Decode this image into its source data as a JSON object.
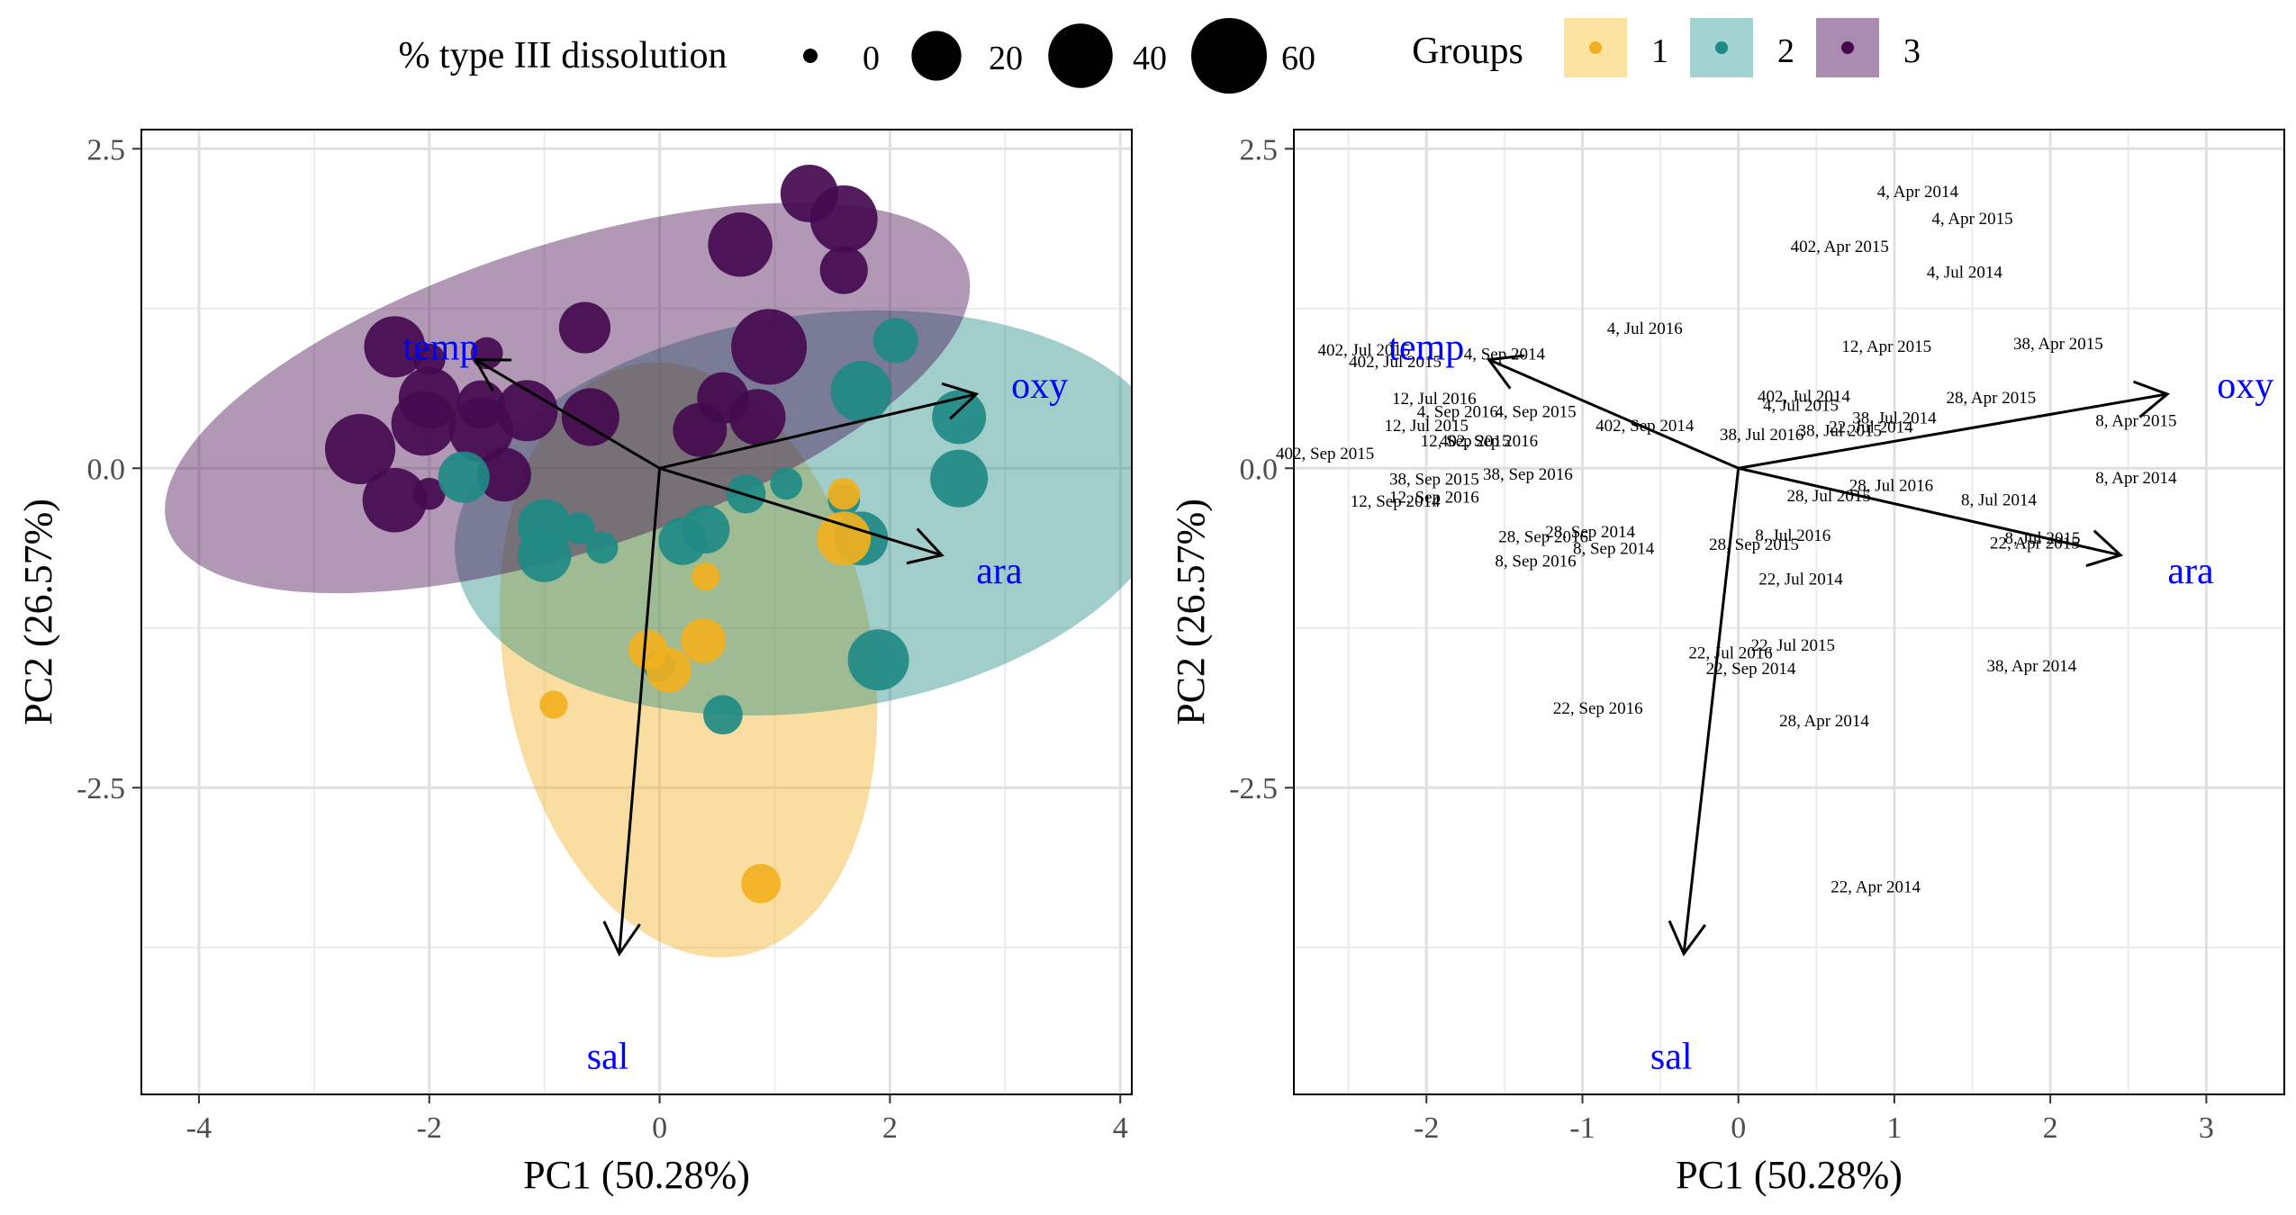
{
  "legend": {
    "size_title": "% type III dissolution",
    "size_items": [
      {
        "label": "0",
        "value": 0
      },
      {
        "label": "20",
        "value": 20
      },
      {
        "label": "40",
        "value": 40
      },
      {
        "label": "60",
        "value": 60
      }
    ],
    "group_title": "Groups",
    "group_items": [
      {
        "label": "1",
        "color": "#F2B01E",
        "fill": "#FDE3A2"
      },
      {
        "label": "2",
        "color": "#1F8A84",
        "fill": "#A3D3D1"
      },
      {
        "label": "3",
        "color": "#440A4F",
        "fill": "#A98CAF"
      }
    ]
  },
  "chart_data": [
    {
      "type": "scatter",
      "xlabel": "PC1 (50.28%)",
      "ylabel": "PC2 (26.57%)",
      "xlim": [
        -4.5,
        4.1
      ],
      "ylim": [
        -4.9,
        2.65
      ],
      "xticks": [
        -4,
        -2,
        0,
        2,
        4
      ],
      "yticks": [
        2.5,
        0.0,
        -2.5
      ],
      "xtick_labels": [
        "-4",
        "-2",
        "0",
        "2",
        "4"
      ],
      "ytick_labels": [
        "2.5",
        "0.0",
        "-2.5"
      ],
      "grid": true,
      "legend_position": "top",
      "size_variable": "% type III dissolution",
      "color_variable": "Groups",
      "ellipses": [
        {
          "group": "1",
          "cx": 0.25,
          "cy": -1.5,
          "rx": 1.6,
          "ry": 2.35,
          "angle": 10
        },
        {
          "group": "2",
          "cx": 1.35,
          "cy": -0.35,
          "rx": 3.15,
          "ry": 1.55,
          "angle": 8
        },
        {
          "group": "3",
          "cx": -0.8,
          "cy": 0.55,
          "rx": 3.65,
          "ry": 1.2,
          "angle": 18
        }
      ],
      "vectors": [
        {
          "label": "temp",
          "x": -1.6,
          "y": 0.85,
          "label_x": -1.9,
          "label_y": 0.95
        },
        {
          "label": "oxy",
          "x": 2.75,
          "y": 0.58,
          "label_x": 3.3,
          "label_y": 0.65
        },
        {
          "label": "ara",
          "x": 2.45,
          "y": -0.68,
          "label_x": 2.95,
          "label_y": -0.8
        },
        {
          "label": "sal",
          "x": -0.35,
          "y": -3.8,
          "label_x": -0.45,
          "label_y": -4.6
        }
      ],
      "points": [
        {
          "x": 1.3,
          "y": 2.15,
          "group": 3,
          "dissolution": 30
        },
        {
          "x": 1.6,
          "y": 1.95,
          "group": 3,
          "dissolution": 45
        },
        {
          "x": 0.7,
          "y": 1.75,
          "group": 3,
          "dissolution": 40
        },
        {
          "x": 1.6,
          "y": 1.55,
          "group": 3,
          "dissolution": 18
        },
        {
          "x": -0.65,
          "y": 1.1,
          "group": 3,
          "dissolution": 22
        },
        {
          "x": -2.3,
          "y": 0.95,
          "group": 3,
          "dissolution": 35
        },
        {
          "x": -1.5,
          "y": 0.9,
          "group": 3,
          "dissolution": 5
        },
        {
          "x": -2.0,
          "y": 0.85,
          "group": 3,
          "dissolution": 5
        },
        {
          "x": 0.95,
          "y": 0.95,
          "group": 3,
          "dissolution": 60
        },
        {
          "x": -2.0,
          "y": 0.55,
          "group": 3,
          "dissolution": 35
        },
        {
          "x": -1.55,
          "y": 0.5,
          "group": 3,
          "dissolution": 18
        },
        {
          "x": -1.15,
          "y": 0.45,
          "group": 3,
          "dissolution": 35
        },
        {
          "x": -2.05,
          "y": 0.35,
          "group": 3,
          "dissolution": 40
        },
        {
          "x": -1.55,
          "y": 0.3,
          "group": 3,
          "dissolution": 40
        },
        {
          "x": -0.6,
          "y": 0.4,
          "group": 3,
          "dissolution": 30
        },
        {
          "x": 0.55,
          "y": 0.55,
          "group": 3,
          "dissolution": 22
        },
        {
          "x": 0.85,
          "y": 0.4,
          "group": 3,
          "dissolution": 28
        },
        {
          "x": -2.6,
          "y": 0.15,
          "group": 3,
          "dissolution": 50
        },
        {
          "x": -2.3,
          "y": -0.25,
          "group": 3,
          "dissolution": 40
        },
        {
          "x": -2.0,
          "y": -0.2,
          "group": 3,
          "dissolution": 5
        },
        {
          "x": -1.35,
          "y": -0.05,
          "group": 3,
          "dissolution": 25
        },
        {
          "x": 0.35,
          "y": 0.3,
          "group": 3,
          "dissolution": 25
        },
        {
          "x": 2.05,
          "y": 1.0,
          "group": 2,
          "dissolution": 15
        },
        {
          "x": 1.75,
          "y": 0.6,
          "group": 2,
          "dissolution": 35
        },
        {
          "x": 2.6,
          "y": 0.4,
          "group": 2,
          "dissolution": 25
        },
        {
          "x": 2.6,
          "y": -0.08,
          "group": 2,
          "dissolution": 30
        },
        {
          "x": -1.7,
          "y": -0.07,
          "group": 2,
          "dissolution": 22
        },
        {
          "x": 0.75,
          "y": -0.2,
          "group": 2,
          "dissolution": 10
        },
        {
          "x": 1.1,
          "y": -0.12,
          "group": 2,
          "dissolution": 5
        },
        {
          "x": 1.6,
          "y": -0.25,
          "group": 2,
          "dissolution": 5
        },
        {
          "x": -1.0,
          "y": -0.45,
          "group": 2,
          "dissolution": 25
        },
        {
          "x": -0.7,
          "y": -0.47,
          "group": 2,
          "dissolution": 5
        },
        {
          "x": 0.4,
          "y": -0.48,
          "group": 2,
          "dissolution": 18
        },
        {
          "x": 0.2,
          "y": -0.57,
          "group": 2,
          "dissolution": 18
        },
        {
          "x": -0.5,
          "y": -0.62,
          "group": 2,
          "dissolution": 5
        },
        {
          "x": -1.0,
          "y": -0.68,
          "group": 2,
          "dissolution": 25
        },
        {
          "x": 1.75,
          "y": -0.55,
          "group": 2,
          "dissolution": 25
        },
        {
          "x": 1.9,
          "y": -1.5,
          "group": 2,
          "dissolution": 35
        },
        {
          "x": 0.55,
          "y": -1.93,
          "group": 2,
          "dissolution": 10
        },
        {
          "x": 0.0,
          "y": -1.55,
          "group": 2,
          "dissolution": 5
        },
        {
          "x": 1.6,
          "y": -0.55,
          "group": 1,
          "dissolution": 25
        },
        {
          "x": 1.6,
          "y": -0.2,
          "group": 1,
          "dissolution": 5
        },
        {
          "x": 0.4,
          "y": -0.85,
          "group": 1,
          "dissolution": 3
        },
        {
          "x": 0.38,
          "y": -1.35,
          "group": 1,
          "dissolution": 15
        },
        {
          "x": -0.1,
          "y": -1.42,
          "group": 1,
          "dissolution": 10
        },
        {
          "x": 0.08,
          "y": -1.58,
          "group": 1,
          "dissolution": 15
        },
        {
          "x": -0.92,
          "y": -1.85,
          "group": 1,
          "dissolution": 3
        },
        {
          "x": 0.88,
          "y": -3.25,
          "group": 1,
          "dissolution": 10
        }
      ]
    },
    {
      "type": "scatter",
      "xlabel": "PC1 (50.28%)",
      "ylabel": "PC2 (26.57%)",
      "xlim": [
        -2.85,
        3.5
      ],
      "ylim": [
        -4.9,
        2.65
      ],
      "xticks": [
        -2,
        -1,
        0,
        1,
        2,
        3
      ],
      "yticks": [
        2.5,
        0.0,
        -2.5
      ],
      "xtick_labels": [
        "-2",
        "-1",
        "0",
        "1",
        "2",
        "3"
      ],
      "ytick_labels": [
        "2.5",
        "0.0",
        "-2.5"
      ],
      "grid": true,
      "vectors": [
        {
          "label": "temp",
          "x": -1.6,
          "y": 0.85,
          "label_x": -2.0,
          "label_y": 0.95
        },
        {
          "label": "oxy",
          "x": 2.75,
          "y": 0.58,
          "label_x": 3.25,
          "label_y": 0.65
        },
        {
          "label": "ara",
          "x": 2.45,
          "y": -0.68,
          "label_x": 2.9,
          "label_y": -0.8
        },
        {
          "label": "sal",
          "x": -0.35,
          "y": -3.8,
          "label_x": -0.43,
          "label_y": -4.6
        }
      ],
      "sample_labels": [
        {
          "text": "4, Apr 2014",
          "x": 1.15,
          "y": 2.17
        },
        {
          "text": "4, Apr 2015",
          "x": 1.5,
          "y": 1.96
        },
        {
          "text": "402, Apr 2015",
          "x": 0.65,
          "y": 1.74
        },
        {
          "text": "4, Jul 2014",
          "x": 1.45,
          "y": 1.54
        },
        {
          "text": "4, Jul 2016",
          "x": -0.6,
          "y": 1.1
        },
        {
          "text": "12, Apr 2015",
          "x": 0.95,
          "y": 0.96
        },
        {
          "text": "38, Apr 2015",
          "x": 2.05,
          "y": 0.98
        },
        {
          "text": "402, Jul 2015",
          "x": -2.4,
          "y": 0.93
        },
        {
          "text": "4, Sep 2014",
          "x": -1.5,
          "y": 0.9
        },
        {
          "text": "402, Jul 2015",
          "x": -2.2,
          "y": 0.84
        },
        {
          "text": "12, Jul 2016",
          "x": -1.95,
          "y": 0.55
        },
        {
          "text": "402, Jul 2014",
          "x": 0.42,
          "y": 0.57
        },
        {
          "text": "4, Jul 2015",
          "x": 0.4,
          "y": 0.5
        },
        {
          "text": "28, Apr 2015",
          "x": 1.62,
          "y": 0.56
        },
        {
          "text": "4, Sep 2016",
          "x": -1.8,
          "y": 0.45
        },
        {
          "text": "4, Sep 2015",
          "x": -1.3,
          "y": 0.45
        },
        {
          "text": "38, Jul 2014",
          "x": 1.0,
          "y": 0.4
        },
        {
          "text": "38, Jul 2015",
          "x": 0.65,
          "y": 0.3
        },
        {
          "text": "22, Jul 2014",
          "x": 0.85,
          "y": 0.33
        },
        {
          "text": "38, Jul 2016",
          "x": 0.15,
          "y": 0.27
        },
        {
          "text": "8, Apr 2015",
          "x": 2.55,
          "y": 0.38
        },
        {
          "text": "12, Jul 2015",
          "x": -2.0,
          "y": 0.34
        },
        {
          "text": "402, Sep 2014",
          "x": -0.6,
          "y": 0.34
        },
        {
          "text": "12, Sep 2015",
          "x": -1.75,
          "y": 0.22
        },
        {
          "text": "402, Sep 2016",
          "x": -1.6,
          "y": 0.22
        },
        {
          "text": "402, Sep 2015",
          "x": -2.65,
          "y": 0.12
        },
        {
          "text": "38, Sep 2016",
          "x": -1.35,
          "y": -0.04
        },
        {
          "text": "38, Sep 2015",
          "x": -1.95,
          "y": -0.08
        },
        {
          "text": "8, Apr 2014",
          "x": 2.55,
          "y": -0.07
        },
        {
          "text": "28, Jul 2016",
          "x": 0.98,
          "y": -0.13
        },
        {
          "text": "28, Jul 2015",
          "x": 0.58,
          "y": -0.21
        },
        {
          "text": "8, Jul 2014",
          "x": 1.67,
          "y": -0.24
        },
        {
          "text": "12, Sep 2016",
          "x": -1.95,
          "y": -0.22
        },
        {
          "text": "12, Sep 2014",
          "x": -2.2,
          "y": -0.25
        },
        {
          "text": "28, Sep 2014",
          "x": -0.95,
          "y": -0.49
        },
        {
          "text": "28, Sep 2016",
          "x": -1.25,
          "y": -0.53
        },
        {
          "text": "8, Sep 2014",
          "x": -0.8,
          "y": -0.62
        },
        {
          "text": "8, Jul 2016",
          "x": 0.35,
          "y": -0.52
        },
        {
          "text": "28, Sep 2015",
          "x": 0.1,
          "y": -0.59
        },
        {
          "text": "8, Jul 2015",
          "x": 1.95,
          "y": -0.54
        },
        {
          "text": "22, Apr 2015",
          "x": 1.9,
          "y": -0.58
        },
        {
          "text": "8, Sep 2016",
          "x": -1.3,
          "y": -0.72
        },
        {
          "text": "22, Jul 2014",
          "x": 0.4,
          "y": -0.86
        },
        {
          "text": "22, Jul 2015",
          "x": 0.35,
          "y": -1.38
        },
        {
          "text": "22, Jul 2016",
          "x": -0.05,
          "y": -1.44
        },
        {
          "text": "22, Sep 2014",
          "x": 0.08,
          "y": -1.56
        },
        {
          "text": "38, Apr 2014",
          "x": 1.88,
          "y": -1.54
        },
        {
          "text": "22, Sep 2016",
          "x": -0.9,
          "y": -1.87
        },
        {
          "text": "28, Apr 2014",
          "x": 0.55,
          "y": -1.97
        },
        {
          "text": "22, Apr 2014",
          "x": 0.88,
          "y": -3.27
        }
      ]
    }
  ]
}
